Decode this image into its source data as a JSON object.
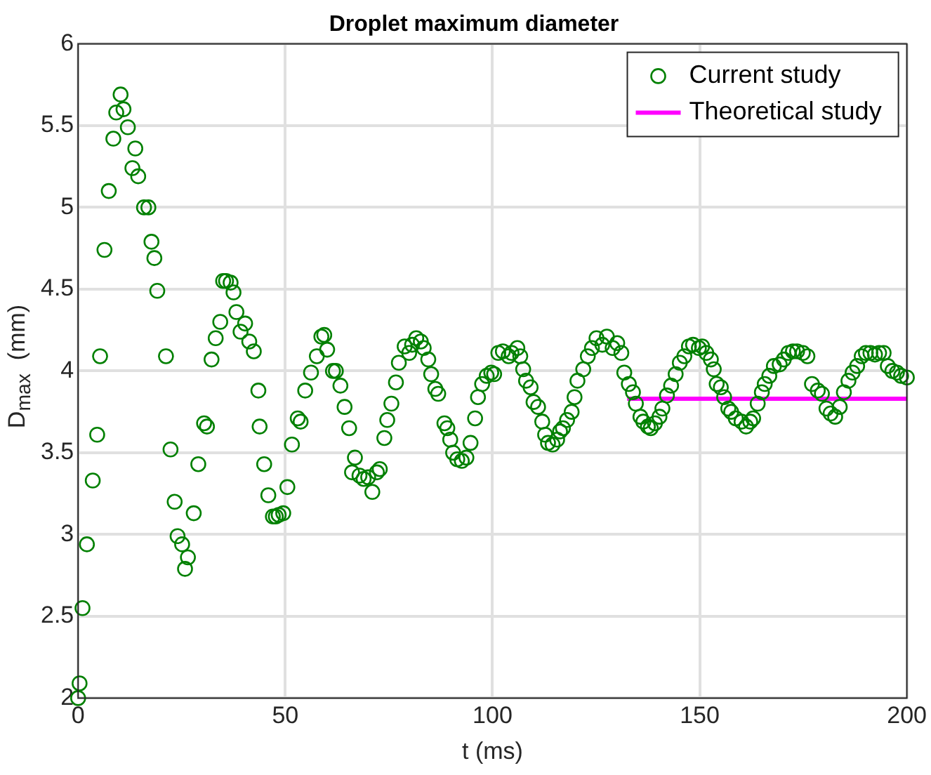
{
  "chart_data": {
    "type": "scatter",
    "title": "Droplet maximum diameter",
    "xlabel": "t (ms)",
    "ylabel": "D$_{max}$  (mm)",
    "xlim": [
      0,
      200
    ],
    "xticks": [
      0,
      50,
      100,
      150,
      200
    ],
    "ylim": [
      2,
      6
    ],
    "yticks": [
      2,
      2.5,
      3,
      3.5,
      4,
      4.5,
      5,
      5.5,
      6
    ],
    "grid": true,
    "legend": "top right",
    "marker": "circle",
    "series": [
      {
        "name": "Current study",
        "color": "#008000",
        "x": [
          0,
          0.35,
          1.06,
          2.12,
          3.53,
          4.6,
          5.3,
          6.36,
          7.4,
          8.5,
          9.2,
          10.25,
          10.95,
          12.0,
          13.1,
          13.8,
          14.5,
          15.9,
          16.96,
          17.7,
          18.4,
          19.1,
          21.2,
          22.3,
          23.3,
          24.0,
          25.1,
          25.8,
          26.5,
          27.9,
          29.0,
          30.4,
          31.1,
          32.2,
          33.2,
          34.3,
          35.0,
          35.7,
          36.8,
          37.5,
          38.2,
          39.2,
          40.3,
          41.3,
          42.4,
          43.5,
          43.8,
          44.9,
          45.9,
          47.0,
          47.7,
          48.4,
          49.5,
          50.5,
          51.6,
          53.0,
          53.7,
          54.8,
          56.2,
          57.6,
          58.7,
          59.4,
          60.1,
          61.5,
          62.2,
          63.3,
          64.3,
          65.4,
          66.1,
          66.8,
          67.9,
          68.9,
          70.0,
          71.0,
          72.1,
          72.8,
          73.9,
          74.6,
          75.6,
          76.7,
          77.4,
          78.8,
          79.9,
          80.6,
          81.6,
          82.7,
          83.4,
          84.5,
          85.2,
          86.2,
          86.9,
          88.4,
          89.1,
          89.8,
          90.5,
          91.5,
          92.6,
          93.7,
          94.7,
          95.8,
          96.5,
          97.5,
          98.6,
          99.7,
          100.4,
          101.4,
          102.5,
          103.9,
          104.6,
          106.0,
          106.7,
          107.4,
          108.1,
          109.2,
          109.9,
          111.0,
          112.0,
          112.7,
          113.4,
          114.5,
          115.6,
          116.3,
          117.0,
          118.0,
          119.1,
          119.8,
          120.5,
          121.9,
          123.0,
          124.0,
          125.1,
          126.5,
          127.6,
          129.0,
          130.1,
          131.1,
          131.8,
          132.9,
          133.9,
          134.6,
          135.7,
          136.4,
          137.5,
          138.2,
          139.2,
          140.3,
          141.0,
          142.1,
          143.1,
          144.2,
          145.2,
          146.3,
          147.4,
          148.4,
          149.8,
          150.6,
          151.6,
          152.7,
          153.4,
          154.1,
          155.1,
          155.9,
          156.9,
          157.6,
          158.7,
          160.1,
          161.2,
          162.2,
          162.9,
          164.0,
          165.0,
          165.7,
          166.8,
          167.9,
          169.3,
          170.3,
          171.4,
          172.5,
          173.5,
          174.9,
          176.0,
          177.1,
          178.5,
          179.5,
          180.6,
          181.6,
          182.7,
          183.8,
          184.8,
          185.9,
          186.9,
          188.0,
          189.1,
          190.1,
          191.2,
          192.3,
          193.3,
          194.4,
          195.4,
          196.5,
          197.6,
          198.6,
          200.0
        ],
        "values": [
          2.0,
          2.09,
          2.55,
          2.94,
          3.33,
          3.61,
          4.09,
          4.74,
          5.1,
          5.42,
          5.58,
          5.69,
          5.6,
          5.49,
          5.24,
          5.36,
          5.19,
          5.0,
          5.0,
          4.79,
          4.69,
          4.49,
          4.09,
          3.52,
          3.2,
          2.99,
          2.94,
          2.79,
          2.86,
          3.13,
          3.43,
          3.68,
          3.66,
          4.07,
          4.2,
          4.3,
          4.55,
          4.55,
          4.54,
          4.48,
          4.36,
          4.24,
          4.29,
          4.18,
          4.12,
          3.88,
          3.66,
          3.43,
          3.24,
          3.11,
          3.11,
          3.12,
          3.13,
          3.29,
          3.55,
          3.71,
          3.69,
          3.88,
          3.99,
          4.09,
          4.21,
          4.22,
          4.13,
          4.0,
          4.0,
          3.91,
          3.78,
          3.65,
          3.38,
          3.47,
          3.36,
          3.34,
          3.35,
          3.26,
          3.38,
          3.4,
          3.59,
          3.7,
          3.8,
          3.93,
          4.05,
          4.15,
          4.11,
          4.16,
          4.2,
          4.18,
          4.14,
          4.07,
          3.98,
          3.89,
          3.86,
          3.68,
          3.65,
          3.58,
          3.5,
          3.46,
          3.45,
          3.47,
          3.56,
          3.71,
          3.84,
          3.92,
          3.97,
          3.99,
          3.98,
          4.11,
          4.12,
          4.09,
          4.11,
          4.14,
          4.09,
          4.01,
          3.94,
          3.9,
          3.81,
          3.78,
          3.69,
          3.61,
          3.56,
          3.55,
          3.58,
          3.63,
          3.65,
          3.7,
          3.75,
          3.84,
          3.94,
          4.01,
          4.09,
          4.14,
          4.2,
          4.16,
          4.21,
          4.14,
          4.17,
          4.11,
          3.99,
          3.92,
          3.87,
          3.8,
          3.72,
          3.69,
          3.66,
          3.65,
          3.68,
          3.72,
          3.77,
          3.85,
          3.91,
          3.98,
          4.05,
          4.09,
          4.15,
          4.16,
          4.14,
          4.15,
          4.11,
          4.07,
          4.01,
          3.92,
          3.9,
          3.84,
          3.77,
          3.75,
          3.71,
          3.69,
          3.66,
          3.69,
          3.71,
          3.8,
          3.87,
          3.92,
          3.97,
          4.03,
          4.04,
          4.07,
          4.11,
          4.12,
          4.12,
          4.11,
          4.09,
          3.92,
          3.88,
          3.86,
          3.77,
          3.74,
          3.72,
          3.78,
          3.87,
          3.94,
          3.99,
          4.03,
          4.09,
          4.11,
          4.11,
          4.1,
          4.11,
          4.11,
          4.03,
          4.0,
          3.99,
          3.97,
          3.96
        ]
      },
      {
        "name": "Theoretical study",
        "type": "line",
        "color": "#ff00ff",
        "marker": "none",
        "x": [
          132.5,
          200
        ],
        "values": [
          3.83,
          3.83
        ]
      }
    ]
  }
}
